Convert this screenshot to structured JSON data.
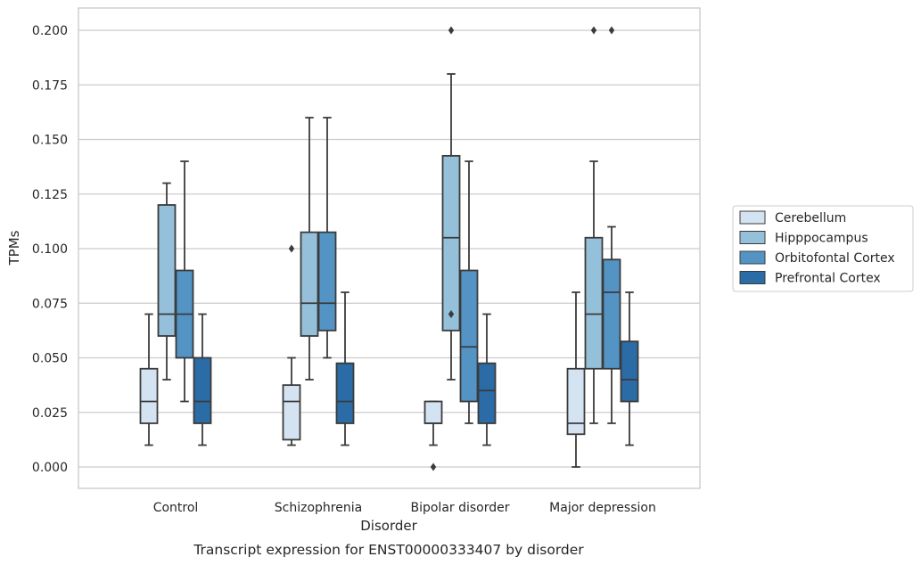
{
  "chart_data": {
    "type": "box",
    "title": "",
    "caption": "Transcript expression for ENST00000333407 by disorder",
    "xlabel": "Disorder",
    "ylabel": "TPMs",
    "ylim": [
      -0.01,
      0.21
    ],
    "yticks": [
      "0.000",
      "0.025",
      "0.050",
      "0.075",
      "0.100",
      "0.125",
      "0.150",
      "0.175",
      "0.200"
    ],
    "grid": "horizontal",
    "legend_position": "right",
    "categories": [
      "Control",
      "Schizophrenia",
      "Bipolar disorder",
      "Major depression"
    ],
    "series": [
      {
        "name": "Cerebellum",
        "color": "#d4e3f2",
        "boxes": [
          {
            "whislo": 0.01,
            "q1": 0.02,
            "med": 0.03,
            "q3": 0.045,
            "whishi": 0.07,
            "fliers": []
          },
          {
            "whislo": 0.01,
            "q1": 0.0125,
            "med": 0.03,
            "q3": 0.0375,
            "whishi": 0.05,
            "fliers": [
              0.1
            ]
          },
          {
            "whislo": 0.01,
            "q1": 0.02,
            "med": 0.02,
            "q3": 0.03,
            "whishi": 0.03,
            "fliers": [
              0.0
            ]
          },
          {
            "whislo": 0.0,
            "q1": 0.015,
            "med": 0.02,
            "q3": 0.045,
            "whishi": 0.08,
            "fliers": []
          }
        ]
      },
      {
        "name": "Hipppocampus",
        "color": "#95c0da",
        "boxes": [
          {
            "whislo": 0.04,
            "q1": 0.06,
            "med": 0.07,
            "q3": 0.12,
            "whishi": 0.13,
            "fliers": []
          },
          {
            "whislo": 0.04,
            "q1": 0.06,
            "med": 0.075,
            "q3": 0.1075,
            "whishi": 0.16,
            "fliers": []
          },
          {
            "whislo": 0.04,
            "q1": 0.0625,
            "med": 0.105,
            "q3": 0.1425,
            "whishi": 0.18,
            "fliers": [
              0.07,
              0.2
            ]
          },
          {
            "whislo": 0.02,
            "q1": 0.045,
            "med": 0.07,
            "q3": 0.105,
            "whishi": 0.14,
            "fliers": [
              0.2
            ]
          }
        ]
      },
      {
        "name": "Orbitofontal Cortex",
        "color": "#5394c4",
        "boxes": [
          {
            "whislo": 0.03,
            "q1": 0.05,
            "med": 0.07,
            "q3": 0.09,
            "whishi": 0.14,
            "fliers": []
          },
          {
            "whislo": 0.05,
            "q1": 0.0625,
            "med": 0.075,
            "q3": 0.1075,
            "whishi": 0.16,
            "fliers": []
          },
          {
            "whislo": 0.02,
            "q1": 0.03,
            "med": 0.055,
            "q3": 0.09,
            "whishi": 0.14,
            "fliers": []
          },
          {
            "whislo": 0.02,
            "q1": 0.045,
            "med": 0.08,
            "q3": 0.095,
            "whishi": 0.11,
            "fliers": [
              0.2
            ]
          }
        ]
      },
      {
        "name": "Prefrontal Cortex",
        "color": "#2b6ba6",
        "boxes": [
          {
            "whislo": 0.01,
            "q1": 0.02,
            "med": 0.03,
            "q3": 0.05,
            "whishi": 0.07,
            "fliers": []
          },
          {
            "whislo": 0.01,
            "q1": 0.02,
            "med": 0.03,
            "q3": 0.0475,
            "whishi": 0.08,
            "fliers": []
          },
          {
            "whislo": 0.01,
            "q1": 0.02,
            "med": 0.035,
            "q3": 0.0475,
            "whishi": 0.07,
            "fliers": []
          },
          {
            "whislo": 0.01,
            "q1": 0.03,
            "med": 0.04,
            "q3": 0.0575,
            "whishi": 0.08,
            "fliers": []
          }
        ]
      }
    ]
  }
}
